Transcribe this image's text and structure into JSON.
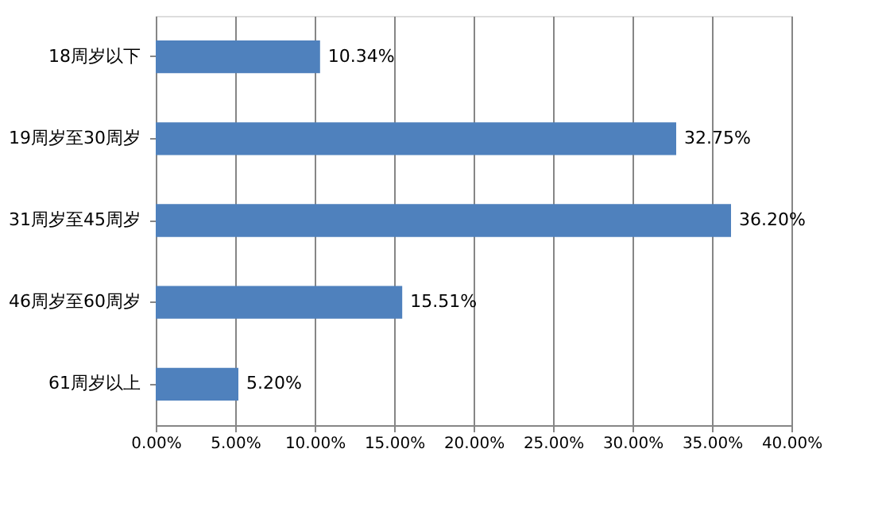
{
  "chart_data": {
    "type": "bar",
    "orientation": "horizontal",
    "categories": [
      "18周岁以下",
      "19周岁至30周岁",
      "31周岁至45周岁",
      "46周岁至60周岁",
      "61周岁以上"
    ],
    "values": [
      10.34,
      32.75,
      36.2,
      15.51,
      5.2
    ],
    "value_labels": [
      "10.34%",
      "32.75%",
      "36.20%",
      "15.51%",
      "5.20%"
    ],
    "color": "#4f81bd",
    "xlim": [
      0,
      40
    ],
    "xticks": [
      {
        "value": 0,
        "label": "0.00%"
      },
      {
        "value": 5,
        "label": "5.00%"
      },
      {
        "value": 10,
        "label": "10.00%"
      },
      {
        "value": 15,
        "label": "15.00%"
      },
      {
        "value": 20,
        "label": "20.00%"
      },
      {
        "value": 25,
        "label": "25.00%"
      },
      {
        "value": 30,
        "label": "30.00%"
      },
      {
        "value": 35,
        "label": "35.00%"
      },
      {
        "value": 40,
        "label": "40.00%"
      }
    ],
    "grid": "x"
  }
}
